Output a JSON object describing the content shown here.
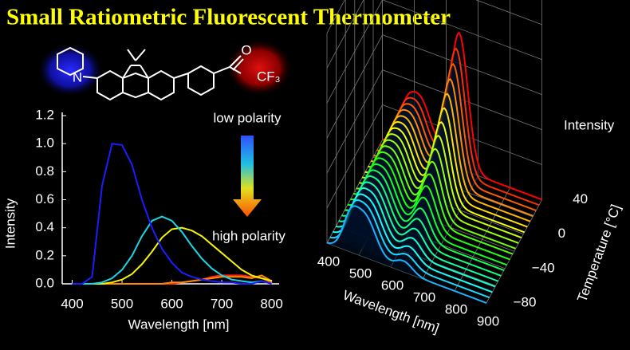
{
  "header": {
    "title": "Small Ratiometric Fluorescent Thermometer"
  },
  "molecule": {
    "atoms": [
      "N",
      "O",
      "CF₃"
    ]
  },
  "chart_data": {
    "type": "line",
    "x_label": "Wavelength [nm]",
    "y_label": "Intensity",
    "annotations": [
      "low polarity",
      "high polarity"
    ],
    "x": [
      400,
      420,
      440,
      460,
      480,
      500,
      520,
      540,
      560,
      580,
      600,
      620,
      640,
      660,
      680,
      700,
      720,
      740,
      760,
      780,
      800
    ],
    "series": [
      {
        "color": "#1c1cff",
        "values": [
          0,
          0,
          0.05,
          0.7,
          1.0,
          0.99,
          0.85,
          0.6,
          0.4,
          0.25,
          0.15,
          0.08,
          0.05,
          0.03,
          0.02,
          0.01,
          0.01,
          0,
          0,
          0.02,
          0
        ]
      },
      {
        "color": "#19d6e6",
        "values": [
          0,
          0,
          0,
          0.01,
          0.04,
          0.1,
          0.2,
          0.34,
          0.45,
          0.48,
          0.45,
          0.37,
          0.27,
          0.18,
          0.11,
          0.06,
          0.03,
          0.02,
          0.01,
          0.02,
          0
        ]
      },
      {
        "color": "#f4f400",
        "values": [
          0,
          0,
          0,
          0,
          0.01,
          0.03,
          0.07,
          0.14,
          0.23,
          0.33,
          0.39,
          0.4,
          0.38,
          0.34,
          0.28,
          0.22,
          0.16,
          0.1,
          0.06,
          0.04,
          0.02
        ]
      },
      {
        "color": "#ff8c00",
        "values": [
          0,
          0,
          0,
          0,
          0,
          0,
          0,
          0,
          0,
          0,
          0.01,
          0.01,
          0.02,
          0.03,
          0.04,
          0.05,
          0.05,
          0.05,
          0.04,
          0.06,
          0.02
        ]
      },
      {
        "color": "#ff2020",
        "values": [
          0,
          0,
          0,
          0,
          0,
          0,
          0,
          0,
          0,
          0,
          0,
          0.01,
          0.02,
          0.03,
          0.05,
          0.06,
          0.06,
          0.06,
          0.05,
          0.04,
          0.01
        ]
      }
    ],
    "xlim": [
      380,
      815
    ],
    "ylim": [
      0,
      1.2
    ],
    "xticks": [
      400,
      500,
      600,
      700,
      800
    ],
    "yticks": [
      {
        "value": 0,
        "label": "0.0"
      },
      {
        "value": 0.2,
        "label": "0.2"
      },
      {
        "value": 0.4,
        "label": "0.4"
      },
      {
        "value": 0.6,
        "label": "0.6"
      },
      {
        "value": 0.8,
        "label": "0.8"
      },
      {
        "value": 1.0,
        "label": "1.0"
      },
      {
        "value": 1.2,
        "label": "1.2"
      }
    ]
  },
  "plot3d": {
    "x_label": "Wavelength [nm]",
    "xticks": [
      400,
      500,
      600,
      700,
      800,
      900
    ],
    "y_label": "Temperature [°C]",
    "yticks": [
      40,
      0,
      {
        "value": -40,
        "label": "−40"
      },
      {
        "value": -80,
        "label": "−80"
      }
    ],
    "z_label": "Intensity"
  }
}
